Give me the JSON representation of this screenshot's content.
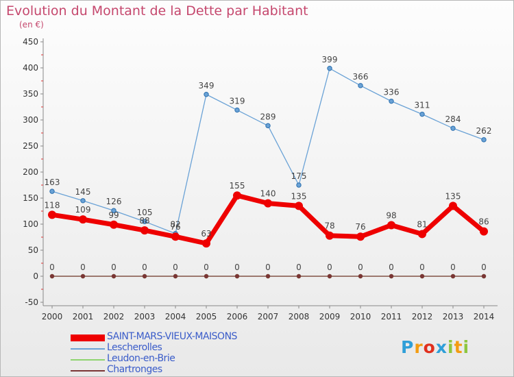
{
  "header": {
    "title": "Evolution du Montant de la Dette par Habitant",
    "unit": "(en €)"
  },
  "chart_data": {
    "type": "line",
    "x": [
      "2000",
      "2001",
      "2002",
      "2003",
      "2004",
      "2005",
      "2006",
      "2007",
      "2008",
      "2009",
      "2010",
      "2011",
      "2012",
      "2013",
      "2014"
    ],
    "ylim": [
      -50,
      450
    ],
    "yticks": [
      -50,
      0,
      50,
      100,
      150,
      200,
      250,
      300,
      350,
      400,
      450
    ],
    "grid": false,
    "legend_position": "bottom-left",
    "series": [
      {
        "name": "SAINT-MARS-VIEUX-MAISONS",
        "color": "#ee0000",
        "values": [
          118,
          109,
          99,
          88,
          76,
          63,
          155,
          140,
          135,
          78,
          76,
          98,
          81,
          135,
          86
        ]
      },
      {
        "name": "Lescherolles",
        "color": "#6aa2d6",
        "values": [
          163,
          145,
          126,
          105,
          82,
          349,
          319,
          289,
          175,
          399,
          366,
          336,
          311,
          284,
          262
        ]
      },
      {
        "name": "Leudon-en-Brie",
        "color": "#8ed46e",
        "values": [
          0,
          0,
          0,
          0,
          0,
          0,
          0,
          0,
          0,
          0,
          0,
          0,
          0,
          0,
          0
        ]
      },
      {
        "name": "Chartronges",
        "color": "#7a3535",
        "values": [
          0,
          0,
          0,
          0,
          0,
          0,
          0,
          0,
          0,
          0,
          0,
          0,
          0,
          0,
          0
        ]
      }
    ]
  },
  "logo": {
    "letters": [
      "P",
      "r",
      "o",
      "x",
      "i",
      "t",
      "i"
    ],
    "colors": [
      "#2f9fd8",
      "#f39c12",
      "#e0301e",
      "#2f9fd8",
      "#8dc63f",
      "#f39c12",
      "#8dc63f"
    ]
  }
}
